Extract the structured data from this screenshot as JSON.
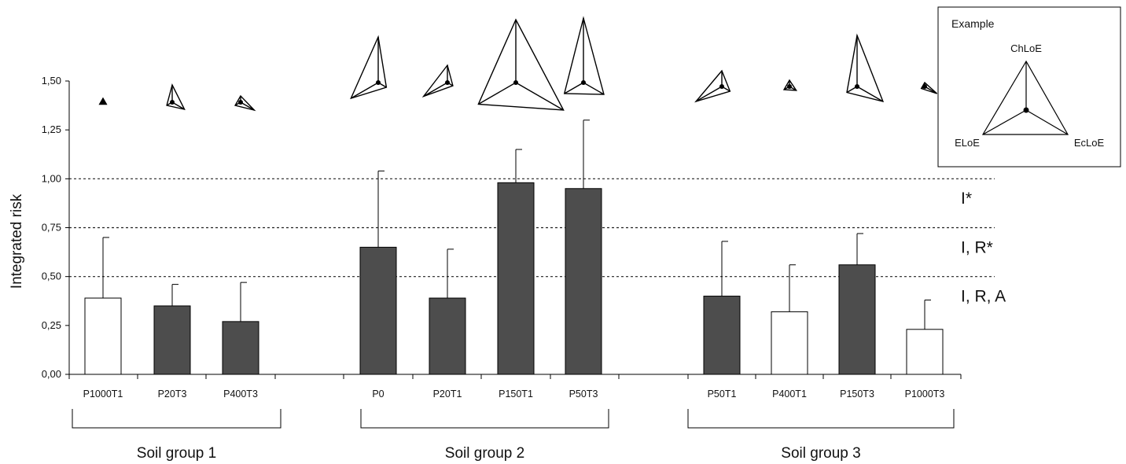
{
  "chart_data": {
    "type": "bar",
    "ylabel": "Integrated risk",
    "ylim": [
      0,
      1.5
    ],
    "y_ticks": [
      "0,00",
      "0,25",
      "0,50",
      "0,75",
      "1,00",
      "1,25",
      "1,50"
    ],
    "y_tick_values": [
      0,
      0.25,
      0.5,
      0.75,
      1.0,
      1.25,
      1.5
    ],
    "threshold_lines": [
      0.5,
      0.75,
      1.0
    ],
    "zone_labels": [
      {
        "label": "I*",
        "y": 0.9
      },
      {
        "label": "I, R*",
        "y": 0.65
      },
      {
        "label": "I, R, A",
        "y": 0.4
      }
    ],
    "colors": {
      "dark": "#4d4d4d",
      "light": "#ffffff",
      "outline": "#000000"
    },
    "groups": [
      {
        "label": "Soil group 1",
        "bars": [
          {
            "category": "P1000T1",
            "value": 0.39,
            "error": 0.31,
            "fill": "light",
            "triangle": {
              "ChLoE": 0.05,
              "ELoE": 0.05,
              "EcLoE": 0.05
            }
          },
          {
            "category": "P20T3",
            "value": 0.35,
            "error": 0.11,
            "fill": "dark",
            "triangle": {
              "ChLoE": 0.22,
              "ELoE": 0.08,
              "EcLoE": 0.18
            }
          },
          {
            "category": "P400T3",
            "value": 0.27,
            "error": 0.2,
            "fill": "dark",
            "triangle": {
              "ChLoE": 0.08,
              "ELoE": 0.08,
              "EcLoE": 0.2
            }
          }
        ]
      },
      {
        "label": "Soil group 2",
        "bars": [
          {
            "category": "P0",
            "value": 0.65,
            "error": 0.39,
            "fill": "dark",
            "triangle": {
              "ChLoE": 0.58,
              "ELoE": 0.4,
              "EcLoE": 0.12
            }
          },
          {
            "category": "P20T1",
            "value": 0.39,
            "error": 0.25,
            "fill": "dark",
            "triangle": {
              "ChLoE": 0.22,
              "ELoE": 0.35,
              "EcLoE": 0.08
            }
          },
          {
            "category": "P150T1",
            "value": 0.98,
            "error": 0.17,
            "fill": "dark",
            "triangle": {
              "ChLoE": 0.8,
              "ELoE": 0.55,
              "EcLoE": 0.7
            }
          },
          {
            "category": "P50T3",
            "value": 0.95,
            "error": 0.35,
            "fill": "dark",
            "triangle": {
              "ChLoE": 0.82,
              "ELoE": 0.28,
              "EcLoE": 0.3
            }
          }
        ]
      },
      {
        "label": "Soil group 3",
        "bars": [
          {
            "category": "P50T1",
            "value": 0.4,
            "error": 0.28,
            "fill": "dark",
            "triangle": {
              "ChLoE": 0.2,
              "ELoE": 0.38,
              "EcLoE": 0.12
            }
          },
          {
            "category": "P400T1",
            "value": 0.32,
            "error": 0.24,
            "fill": "light",
            "triangle": {
              "ChLoE": 0.08,
              "ELoE": 0.08,
              "EcLoE": 0.1
            }
          },
          {
            "category": "P150T3",
            "value": 0.56,
            "error": 0.16,
            "fill": "dark",
            "triangle": {
              "ChLoE": 0.65,
              "ELoE": 0.15,
              "EcLoE": 0.38
            }
          },
          {
            "category": "P1000T3",
            "value": 0.23,
            "error": 0.15,
            "fill": "light",
            "triangle": {
              "ChLoE": 0.05,
              "ELoE": 0.05,
              "EcLoE": 0.18
            }
          }
        ]
      }
    ],
    "example": {
      "title": "Example",
      "labels": [
        "ChLoE",
        "ELoE",
        "EcLoE"
      ]
    }
  }
}
